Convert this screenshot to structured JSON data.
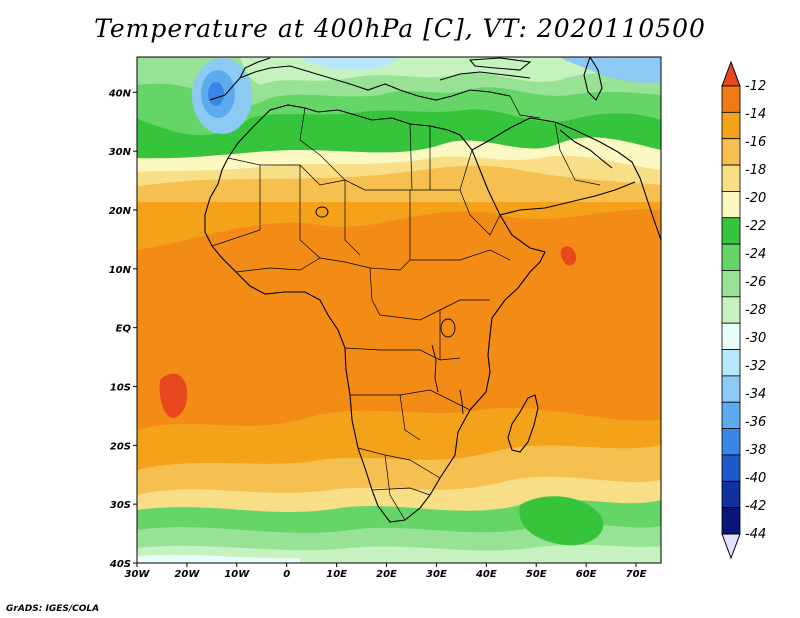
{
  "title": "Temperature at 400hPa [C], VT: 2020110500",
  "credit": "GrADS: IGES/COLA",
  "map": {
    "lon_range": [
      -30,
      75
    ],
    "lat_range": [
      -40,
      46
    ],
    "lon_ticks": [
      {
        "value": -30,
        "label": "30W"
      },
      {
        "value": -20,
        "label": "20W"
      },
      {
        "value": -10,
        "label": "10W"
      },
      {
        "value": 0,
        "label": "0"
      },
      {
        "value": 10,
        "label": "10E"
      },
      {
        "value": 20,
        "label": "20E"
      },
      {
        "value": 30,
        "label": "30E"
      },
      {
        "value": 40,
        "label": "40E"
      },
      {
        "value": 50,
        "label": "50E"
      },
      {
        "value": 60,
        "label": "60E"
      },
      {
        "value": 70,
        "label": "70E"
      }
    ],
    "lat_ticks": [
      {
        "value": 40,
        "label": "40N"
      },
      {
        "value": 30,
        "label": "30N"
      },
      {
        "value": 20,
        "label": "20N"
      },
      {
        "value": 10,
        "label": "10N"
      },
      {
        "value": 0,
        "label": "EQ"
      },
      {
        "value": -10,
        "label": "10S"
      },
      {
        "value": -20,
        "label": "20S"
      },
      {
        "value": -30,
        "label": "30S"
      },
      {
        "value": -40,
        "label": "40S"
      }
    ]
  },
  "colorbar": {
    "levels": [
      "-12",
      "-14",
      "-16",
      "-18",
      "-20",
      "-22",
      "-24",
      "-26",
      "-28",
      "-30",
      "-32",
      "-34",
      "-36",
      "-38",
      "-40",
      "-42",
      "-44"
    ],
    "colors": [
      "#e8481e",
      "#f07a16",
      "#f4a21a",
      "#f6c050",
      "#f8de86",
      "#fbf8c2",
      "#36c43c",
      "#66d568",
      "#98e296",
      "#c6f2c0",
      "#e8fefa",
      "#b8e6fa",
      "#8ccaf4",
      "#5eaaf0",
      "#3a86e6",
      "#1f58c8",
      "#1230a0",
      "#0a147a",
      "#e4e0ff"
    ]
  }
}
